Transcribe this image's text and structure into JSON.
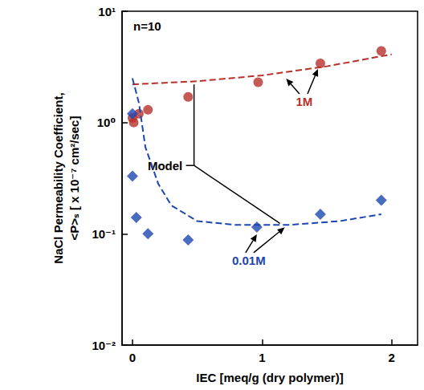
{
  "chart_data": {
    "type": "scatter",
    "annotations": [
      "n=10"
    ],
    "xlabel": "IEC [meq/g (dry polymer)]",
    "ylabel": [
      "NaCl Permeability Coefficient,",
      "<P>ₛ [ x 10⁻⁷ cm²/sec]"
    ],
    "xlim": [
      -0.08,
      2.2
    ],
    "xticks": [
      0,
      1,
      2
    ],
    "ylim": [
      0.01,
      10
    ],
    "yticks": [
      {
        "value": 0.01,
        "label": "10⁻²"
      },
      {
        "value": 0.1,
        "label": "10⁻¹"
      },
      {
        "value": 1,
        "label": "10⁰"
      },
      {
        "value": 10,
        "label": "10¹"
      }
    ],
    "log": "y",
    "grid": false,
    "series": [
      {
        "name": "1M",
        "type": "scatter",
        "color": "#b8302a",
        "marker": "circle",
        "x": [
          0.0,
          0.01,
          0.05,
          0.12,
          0.43,
          0.97,
          1.45,
          1.92
        ],
        "values": [
          1.1,
          1.0,
          1.2,
          1.3,
          1.7,
          2.3,
          3.4,
          4.4
        ]
      },
      {
        "name": "0.01M",
        "type": "scatter",
        "color": "#1c46b0",
        "marker": "diamond",
        "x": [
          0.0,
          0.0,
          0.03,
          0.12,
          0.43,
          0.96,
          1.45,
          1.92
        ],
        "values": [
          1.2,
          0.33,
          0.14,
          0.1,
          0.088,
          0.115,
          0.15,
          0.2
        ]
      },
      {
        "name": "Model",
        "type": "line",
        "color": "#b8302a",
        "line_style": "dashed",
        "x": [
          0,
          0.5,
          1,
          1.5,
          2
        ],
        "values": [
          2.2,
          2.35,
          2.65,
          3.2,
          4.1
        ]
      },
      {
        "name": "Model",
        "type": "line",
        "color": "#1c46b0",
        "line_style": "dashed",
        "x": [
          0,
          0.05,
          0.1,
          0.2,
          0.3,
          0.5,
          0.8,
          1.2,
          1.6,
          1.92
        ],
        "values": [
          2.5,
          1.5,
          0.6,
          0.28,
          0.18,
          0.13,
          0.12,
          0.12,
          0.13,
          0.15
        ]
      }
    ]
  }
}
